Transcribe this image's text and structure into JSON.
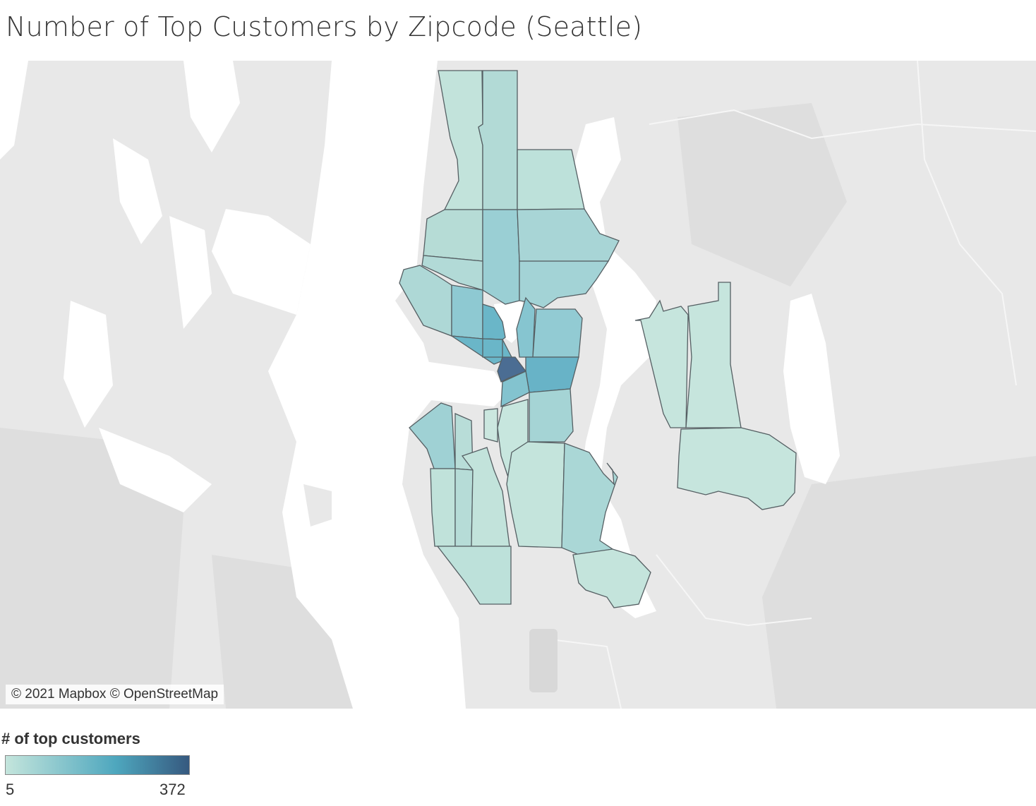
{
  "title": "Number of Top Customers by Zipcode (Seattle)",
  "map": {
    "attribution": "© 2021 Mapbox © OpenStreetMap",
    "land_color": "#e6e6e6",
    "water_color": "#ffffff"
  },
  "legend": {
    "title": "# of top customers",
    "min": "5",
    "max": "372",
    "color_low": "#c4e5dc",
    "color_mid": "#4ea7be",
    "color_high": "#36597f"
  }
}
